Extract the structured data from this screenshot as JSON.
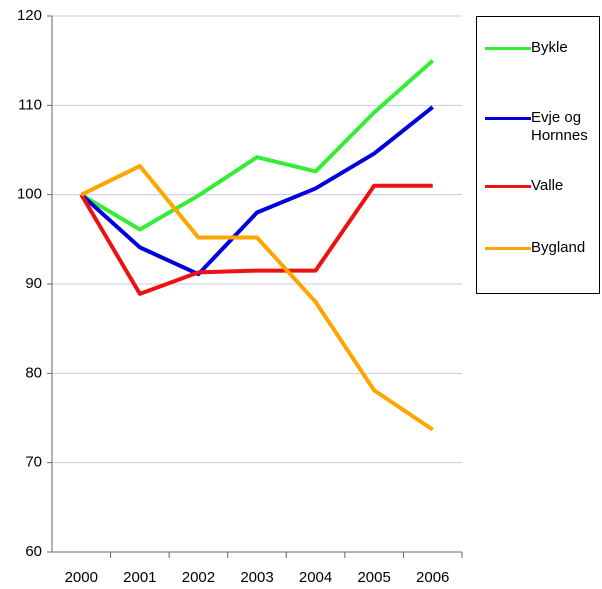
{
  "chart_data": {
    "type": "line",
    "categories": [
      "2000",
      "2001",
      "2002",
      "2003",
      "2004",
      "2005",
      "2006"
    ],
    "series": [
      {
        "name": "Bykle",
        "color": "#33ee33",
        "values": [
          100,
          96.1,
          99.9,
          104.2,
          102.6,
          109.2,
          115
        ]
      },
      {
        "name": "Evje og Hornnes",
        "color": "#0000dd",
        "values": [
          100,
          94.1,
          91.1,
          98,
          100.7,
          104.6,
          109.8
        ]
      },
      {
        "name": "Valle",
        "color": "#ee1111",
        "values": [
          100,
          88.9,
          91.3,
          91.5,
          91.5,
          101,
          101
        ]
      },
      {
        "name": "Bygland",
        "color": "#ffa500",
        "values": [
          100,
          103.2,
          95.2,
          95.2,
          88,
          78.1,
          73.7
        ]
      }
    ],
    "ylim": [
      60,
      120
    ],
    "yticks": [
      60,
      70,
      80,
      90,
      100,
      110,
      120
    ],
    "grid": true,
    "legend": "right"
  }
}
